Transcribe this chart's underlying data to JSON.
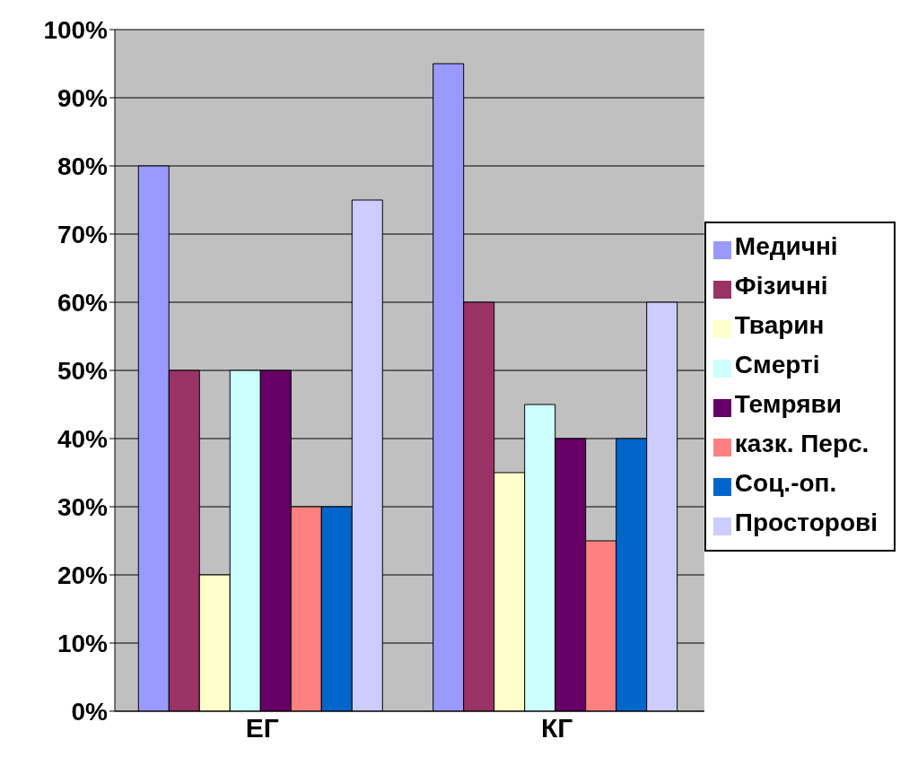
{
  "chart_data": {
    "type": "bar",
    "categories": [
      "ЕГ",
      "КГ"
    ],
    "series": [
      {
        "name": "Медичні",
        "color": "#9999ff",
        "values": [
          80,
          95
        ]
      },
      {
        "name": "Фізичні",
        "color": "#993366",
        "values": [
          50,
          60
        ]
      },
      {
        "name": "Тварин",
        "color": "#ffffcc",
        "values": [
          20,
          35
        ]
      },
      {
        "name": "Смерті",
        "color": "#ccffff",
        "values": [
          50,
          45
        ]
      },
      {
        "name": "Темряви",
        "color": "#660066",
        "values": [
          50,
          40
        ]
      },
      {
        "name": "казк. Перс.",
        "color": "#ff8080",
        "values": [
          30,
          25
        ]
      },
      {
        "name": "Соц.-оп.",
        "color": "#0066cc",
        "values": [
          30,
          40
        ]
      },
      {
        "name": "Просторові",
        "color": "#ccccff",
        "values": [
          75,
          60
        ]
      }
    ],
    "ylim": [
      0,
      100
    ],
    "yticks": [
      {
        "value": 0,
        "label": "0%"
      },
      {
        "value": 10,
        "label": "10%"
      },
      {
        "value": 20,
        "label": "20%"
      },
      {
        "value": 30,
        "label": "30%"
      },
      {
        "value": 40,
        "label": "40%"
      },
      {
        "value": 50,
        "label": "50%"
      },
      {
        "value": 60,
        "label": "60%"
      },
      {
        "value": 70,
        "label": "70%"
      },
      {
        "value": 80,
        "label": "80%"
      },
      {
        "value": 90,
        "label": "90%"
      },
      {
        "value": 100,
        "label": "100%"
      }
    ],
    "grid": "y",
    "legend": "right"
  }
}
